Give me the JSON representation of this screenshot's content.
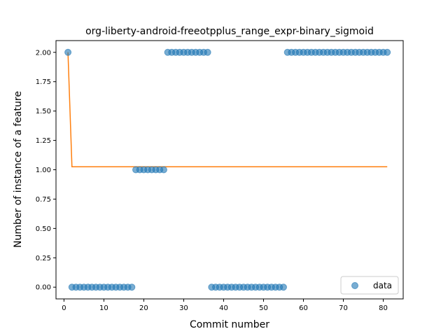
{
  "chart_data": {
    "type": "scatter",
    "title": "org-liberty-android-freeotpplus_range_expr-binary_sigmoid",
    "xlabel": "Commit number",
    "ylabel": "Number of instance of a feature",
    "xlim": [
      -2,
      85
    ],
    "ylim": [
      -0.1,
      2.1
    ],
    "xticks": [
      0,
      10,
      20,
      30,
      40,
      50,
      60,
      70,
      80
    ],
    "yticks": [
      0.0,
      0.25,
      0.5,
      0.75,
      1.0,
      1.25,
      1.5,
      1.75,
      2.0
    ],
    "yticks_labels": [
      "0.00",
      "0.25",
      "0.50",
      "0.75",
      "1.00",
      "1.25",
      "1.50",
      "1.75",
      "2.00"
    ],
    "legend": {
      "placement": "lower-right",
      "entries": [
        "data"
      ]
    },
    "colors": {
      "data": "#1f77b4",
      "fit": "#ff7f0e"
    },
    "series": [
      {
        "name": "data",
        "kind": "scatter",
        "x": [
          1,
          2,
          3,
          4,
          5,
          6,
          7,
          8,
          9,
          10,
          11,
          12,
          13,
          14,
          15,
          16,
          17,
          18,
          19,
          20,
          21,
          22,
          23,
          24,
          25,
          26,
          27,
          28,
          29,
          30,
          31,
          32,
          33,
          34,
          35,
          36,
          37,
          38,
          39,
          40,
          41,
          42,
          43,
          44,
          45,
          46,
          47,
          48,
          49,
          50,
          51,
          52,
          53,
          54,
          55,
          56,
          57,
          58,
          59,
          60,
          61,
          62,
          63,
          64,
          65,
          66,
          67,
          68,
          69,
          70,
          71,
          72,
          73,
          74,
          75,
          76,
          77,
          78,
          79,
          80,
          81
        ],
        "y": [
          2,
          0,
          0,
          0,
          0,
          0,
          0,
          0,
          0,
          0,
          0,
          0,
          0,
          0,
          0,
          0,
          0,
          1,
          1,
          1,
          1,
          1,
          1,
          1,
          1,
          2,
          2,
          2,
          2,
          2,
          2,
          2,
          2,
          2,
          2,
          2,
          0,
          0,
          0,
          0,
          0,
          0,
          0,
          0,
          0,
          0,
          0,
          0,
          0,
          0,
          0,
          0,
          0,
          0,
          0,
          2,
          2,
          2,
          2,
          2,
          2,
          2,
          2,
          2,
          2,
          2,
          2,
          2,
          2,
          2,
          2,
          2,
          2,
          2,
          2,
          2,
          2,
          2,
          2,
          2,
          2
        ]
      },
      {
        "kind": "line",
        "x": [
          1,
          2,
          81
        ],
        "y": [
          2.0,
          1.025,
          1.025
        ]
      }
    ]
  }
}
